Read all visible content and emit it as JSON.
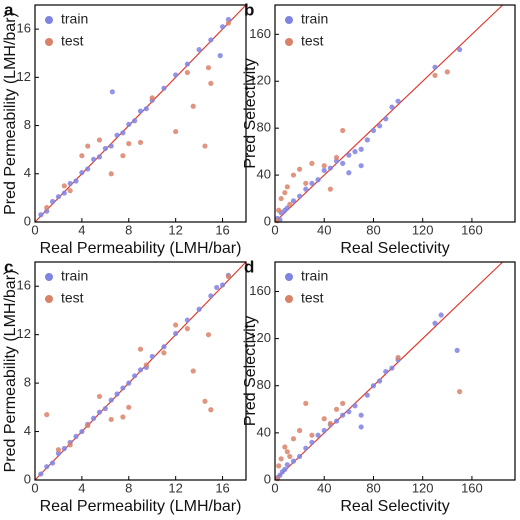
{
  "chart_data": [
    {
      "type": "scatter",
      "panel_label": "a",
      "xlabel": "Real Permeability (LMH/bar)",
      "ylabel": "Pred Permeability (LMH/bar)",
      "xlim": [
        0,
        18
      ],
      "ylim": [
        0,
        18
      ],
      "xticks": [
        0,
        4,
        8,
        12,
        16
      ],
      "yticks": [
        0,
        4,
        8,
        12,
        16
      ],
      "legend": "upper left",
      "series": [
        {
          "name": "train",
          "color": "#7f83e3",
          "x": [
            0.5,
            1,
            1.5,
            2,
            2.5,
            3,
            3.5,
            4,
            4.5,
            5,
            5.5,
            6,
            6.5,
            6.6,
            7,
            7.5,
            8,
            8.5,
            9,
            9.5,
            10,
            11,
            12,
            13,
            14,
            15,
            16,
            16.5,
            15.8
          ],
          "y": [
            0.6,
            0.9,
            1.7,
            2.1,
            2.4,
            3.2,
            3.4,
            4.1,
            4.4,
            5.2,
            5.4,
            6.1,
            6.3,
            10.8,
            7.2,
            7.4,
            8.1,
            8.4,
            9.2,
            9.4,
            10.1,
            11.1,
            12.2,
            13.1,
            14.3,
            15.1,
            16.2,
            16.8,
            13.8
          ]
        },
        {
          "name": "test",
          "color": "#d9826a",
          "x": [
            1,
            3,
            4.5,
            5.5,
            6.5,
            7.5,
            8,
            9,
            10,
            12,
            13.5,
            14.5,
            15,
            14.8,
            16.5,
            13,
            4,
            2.5
          ],
          "y": [
            1.2,
            2.6,
            6.3,
            6.8,
            4.0,
            5.5,
            6.5,
            6.6,
            10.3,
            7.5,
            9.6,
            6.3,
            11.5,
            12.8,
            16.5,
            12.4,
            5.5,
            3.0
          ]
        }
      ]
    },
    {
      "type": "scatter",
      "panel_label": "b",
      "xlabel": "Real Selectivity",
      "ylabel": "Pred Selectivity",
      "xlim": [
        0,
        195
      ],
      "ylim": [
        0,
        185
      ],
      "xticks": [
        0,
        40,
        80,
        120,
        160
      ],
      "yticks": [
        0,
        40,
        80,
        120,
        160
      ],
      "legend": "upper left",
      "series": [
        {
          "name": "train",
          "color": "#7f83e3",
          "x": [
            2,
            4,
            5,
            8,
            10,
            15,
            20,
            25,
            30,
            35,
            40,
            45,
            50,
            55,
            60,
            65,
            70,
            75,
            80,
            85,
            90,
            95,
            100,
            130,
            150,
            70,
            60
          ],
          "y": [
            3,
            2,
            8,
            10,
            12,
            18,
            22,
            28,
            33,
            36,
            44,
            46,
            52,
            50,
            57,
            60,
            62,
            70,
            78,
            82,
            88,
            98,
            103,
            132,
            147,
            48,
            42
          ]
        },
        {
          "name": "test",
          "color": "#d9826a",
          "x": [
            3,
            5,
            8,
            10,
            15,
            20,
            25,
            30,
            40,
            50,
            55,
            45,
            2,
            130,
            140,
            12
          ],
          "y": [
            10,
            20,
            25,
            30,
            40,
            45,
            33,
            50,
            48,
            55,
            78,
            28,
            1,
            125,
            128,
            15
          ]
        }
      ]
    },
    {
      "type": "scatter",
      "panel_label": "c",
      "xlabel": "Real Permeability (LMH/bar)",
      "ylabel": "Pred Permeability (LMH/bar)",
      "xlim": [
        0,
        18
      ],
      "ylim": [
        0,
        18
      ],
      "xticks": [
        0,
        4,
        8,
        12,
        16
      ],
      "yticks": [
        0,
        4,
        8,
        12,
        16
      ],
      "legend": "upper left",
      "series": [
        {
          "name": "train",
          "color": "#7f83e3",
          "x": [
            0.5,
            1,
            1.5,
            2,
            2.5,
            3,
            3.5,
            4,
            4.5,
            5,
            5.5,
            6,
            6.5,
            7,
            7.5,
            8,
            8.5,
            9,
            9.5,
            10,
            11,
            12,
            13,
            14,
            15,
            16,
            16.5,
            15.5
          ],
          "y": [
            0.5,
            1.1,
            1.4,
            2.2,
            2.6,
            3.1,
            3.6,
            4.0,
            4.6,
            5.1,
            5.6,
            5.9,
            6.6,
            7.1,
            7.6,
            8.0,
            8.6,
            9.1,
            9.3,
            10.2,
            11.0,
            12.1,
            13.2,
            14.1,
            15.2,
            16.1,
            16.9,
            15.9
          ]
        },
        {
          "name": "test",
          "color": "#d9826a",
          "x": [
            1,
            2,
            3,
            4.5,
            5.5,
            6.5,
            7.5,
            8,
            9,
            9.5,
            11,
            12,
            13.5,
            14.5,
            15,
            14.8,
            16.5,
            13
          ],
          "y": [
            5.4,
            2.5,
            2.9,
            4.5,
            6.9,
            5.0,
            5.2,
            6.0,
            10.8,
            9.5,
            10.5,
            12.8,
            9.0,
            6.5,
            5.8,
            12.0,
            16.8,
            12.5
          ]
        }
      ]
    },
    {
      "type": "scatter",
      "panel_label": "d",
      "xlabel": "Real Selectivity",
      "ylabel": "Pred Selectivity",
      "xlim": [
        0,
        195
      ],
      "ylim": [
        0,
        185
      ],
      "xticks": [
        0,
        40,
        80,
        120,
        160
      ],
      "yticks": [
        0,
        40,
        80,
        120,
        160
      ],
      "legend": "upper left",
      "series": [
        {
          "name": "train",
          "color": "#7f83e3",
          "x": [
            2,
            4,
            6,
            8,
            10,
            15,
            20,
            25,
            30,
            35,
            40,
            45,
            50,
            55,
            60,
            65,
            70,
            75,
            80,
            85,
            90,
            95,
            100,
            130,
            148,
            135,
            70
          ],
          "y": [
            2,
            4,
            7,
            9,
            13,
            16,
            20,
            27,
            32,
            38,
            42,
            47,
            50,
            55,
            58,
            63,
            55,
            72,
            80,
            84,
            92,
            95,
            102,
            133,
            110,
            140,
            45
          ]
        },
        {
          "name": "test",
          "color": "#d9826a",
          "x": [
            3,
            5,
            8,
            10,
            15,
            20,
            25,
            30,
            40,
            50,
            55,
            45,
            2,
            100,
            150,
            12
          ],
          "y": [
            12,
            18,
            28,
            24,
            35,
            42,
            65,
            38,
            52,
            60,
            65,
            48,
            1,
            104,
            75,
            20
          ]
        }
      ]
    }
  ]
}
